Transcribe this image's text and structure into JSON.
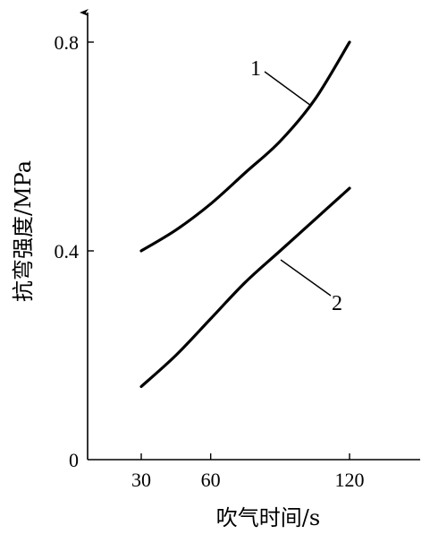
{
  "chart_data": {
    "type": "line",
    "title": "",
    "xlabel": "吹气时间/s",
    "ylabel": "抗弯强度/MPa",
    "xlim": [
      20,
      150
    ],
    "ylim": [
      0,
      0.8
    ],
    "xticks": [
      30,
      60,
      120
    ],
    "xtick_labels": [
      "30",
      "60",
      "120"
    ],
    "yticks": [
      0,
      0.4,
      0.8
    ],
    "ytick_labels": [
      "0",
      "0.4",
      "0.8"
    ],
    "grid": false,
    "legend": "none",
    "series": [
      {
        "name": "1",
        "x": [
          30,
          45,
          60,
          75,
          90,
          105,
          120
        ],
        "y": [
          0.4,
          0.44,
          0.49,
          0.55,
          0.61,
          0.69,
          0.8
        ]
      },
      {
        "name": "2",
        "x": [
          30,
          45,
          60,
          75,
          90,
          105,
          120
        ],
        "y": [
          0.14,
          0.2,
          0.27,
          0.34,
          0.4,
          0.46,
          0.52
        ]
      }
    ]
  }
}
